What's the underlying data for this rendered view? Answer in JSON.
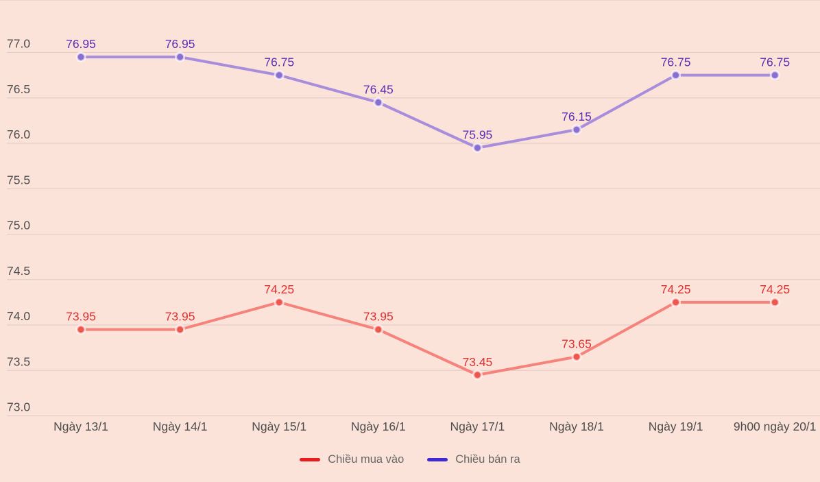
{
  "chart_data": {
    "type": "line",
    "categories": [
      "Ngày 13/1",
      "Ngày 14/1",
      "Ngày 15/1",
      "Ngày 16/1",
      "Ngày 17/1",
      "Ngày 18/1",
      "Ngày 19/1",
      "9h00 ngày 20/1"
    ],
    "series": [
      {
        "name": "Chiều mua vào",
        "values": [
          73.95,
          73.95,
          74.25,
          73.95,
          73.45,
          73.65,
          74.25,
          74.25
        ],
        "line_color": "#f5837b",
        "marker_color": "#ed574d",
        "label_color": "#e02f2f",
        "legend_color": "#e81d1d"
      },
      {
        "name": "Chiều bán ra",
        "values": [
          76.95,
          76.95,
          76.75,
          76.45,
          75.95,
          76.15,
          76.75,
          76.75
        ],
        "line_color": "#a78ddb",
        "marker_color": "#8a6ed0",
        "label_color": "#5f2db3",
        "legend_color": "#3e2ad6"
      }
    ],
    "title": "",
    "xlabel": "",
    "ylabel": "",
    "ylim": [
      72.8,
      77.2
    ],
    "yticks": [
      77.0,
      76.5,
      76.0,
      75.5,
      75.0,
      74.5,
      74.0,
      73.5,
      73.0
    ],
    "grid": true,
    "legend_position": "bottom"
  },
  "colors": {
    "background": "#fce3da",
    "gridline": "#e2cec7",
    "axis_text": "#4d4d4d",
    "legend_text": "#666666"
  },
  "legend": {
    "items": [
      {
        "label": "Chiều mua vào",
        "color": "#e81d1d"
      },
      {
        "label": "Chiều bán ra",
        "color": "#3e2ad6"
      }
    ]
  }
}
